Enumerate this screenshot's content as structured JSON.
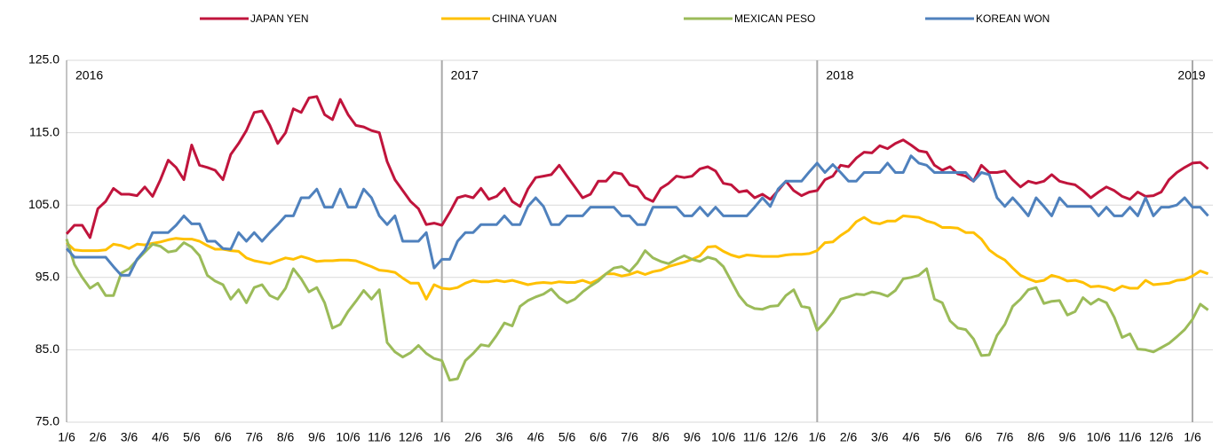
{
  "chart_data": {
    "type": "line",
    "ylim": [
      75,
      125
    ],
    "yticks": [
      {
        "value": 75,
        "label": "75.0"
      },
      {
        "value": 85,
        "label": "85.0"
      },
      {
        "value": 95,
        "label": "95.0"
      },
      {
        "value": 105,
        "label": "105.0"
      },
      {
        "value": 115,
        "label": "115.0"
      },
      {
        "value": 125,
        "label": "125.0"
      }
    ],
    "grid": true,
    "legend": "top",
    "annotations": [
      "2016",
      "2017",
      "2018",
      "2019"
    ],
    "categories": [
      "1/6",
      null,
      null,
      null,
      "2/6",
      null,
      null,
      null,
      "3/6",
      null,
      null,
      null,
      "4/6",
      null,
      null,
      null,
      "5/6",
      null,
      null,
      null,
      "6/6",
      null,
      null,
      null,
      "7/6",
      null,
      null,
      null,
      "8/6",
      null,
      null,
      null,
      "9/6",
      null,
      null,
      null,
      "10/6",
      null,
      null,
      null,
      "11/6",
      null,
      null,
      null,
      "12/6",
      null,
      null,
      null,
      "1/6",
      null,
      null,
      null,
      "2/6",
      null,
      null,
      null,
      "3/6",
      null,
      null,
      null,
      "4/6",
      null,
      null,
      null,
      "5/6",
      null,
      null,
      null,
      "6/6",
      null,
      null,
      null,
      "7/6",
      null,
      null,
      null,
      "8/6",
      null,
      null,
      null,
      "9/6",
      null,
      null,
      null,
      "10/6",
      null,
      null,
      null,
      "11/6",
      null,
      null,
      null,
      "12/6",
      null,
      null,
      null,
      "1/6",
      null,
      null,
      null,
      "2/6",
      null,
      null,
      null,
      "3/6",
      null,
      null,
      null,
      "4/6",
      null,
      null,
      null,
      "5/6",
      null,
      null,
      null,
      "6/6",
      null,
      null,
      null,
      "7/6",
      null,
      null,
      null,
      "8/6",
      null,
      null,
      null,
      "9/6",
      null,
      null,
      null,
      "10/6",
      null,
      null,
      null,
      "11/6",
      null,
      null,
      null,
      "12/6",
      null,
      null,
      null,
      "1/6",
      null,
      null
    ],
    "series": [
      {
        "name": "JAPAN YEN",
        "color": "#c0143c",
        "values": [
          101,
          102.2,
          102.2,
          100.5,
          104.5,
          105.5,
          107.3,
          106.5,
          106.5,
          106.3,
          107.5,
          106.2,
          108.5,
          111.2,
          110.2,
          108.5,
          113.3,
          110.5,
          110.2,
          109.8,
          108.5,
          112,
          113.5,
          115.3,
          117.8,
          118,
          116,
          113.5,
          115,
          118.3,
          117.8,
          119.8,
          120,
          117.5,
          116.8,
          119.6,
          117.5,
          116,
          115.8,
          115.3,
          115,
          111,
          108.5,
          107,
          105.5,
          104.5,
          102.3,
          102.5,
          102.2,
          104,
          106,
          106.3,
          106,
          107.3,
          105.8,
          106.2,
          107.3,
          105.5,
          104.8,
          107.2,
          108.8,
          109,
          109.2,
          110.5,
          109,
          107.5,
          106,
          106.5,
          108.3,
          108.3,
          109.5,
          109.3,
          107.8,
          107.5,
          106,
          105.5,
          107.3,
          108,
          109,
          108.8,
          109,
          110,
          110.3,
          109.7,
          108,
          107.8,
          106.8,
          107,
          106,
          106.5,
          105.8,
          107,
          108.3,
          107,
          106.3,
          106.8,
          107,
          108.5,
          109,
          110.5,
          110.3,
          111.5,
          112.3,
          112.2,
          113.2,
          112.8,
          113.5,
          114,
          113.3,
          112.5,
          112.3,
          110.5,
          109.8,
          110.3,
          109.3,
          109,
          108.3,
          110.5,
          109.5,
          109.5,
          109.7,
          108.5,
          107.5,
          108.3,
          108,
          108.3,
          109.2,
          108.3,
          108,
          107.8,
          107,
          106,
          106.8,
          107.5,
          107,
          106.2,
          105.8,
          106.8,
          106.2,
          106.3,
          106.8,
          108.5,
          109.5,
          110.2,
          110.8,
          110.9,
          110
        ]
      },
      {
        "name": "CHINA YUAN",
        "color": "#ffc000",
        "values": [
          99.8,
          98.8,
          98.7,
          98.7,
          98.7,
          98.8,
          99.6,
          99.4,
          99,
          99.6,
          99.5,
          99.7,
          99.9,
          100.2,
          100.4,
          100.3,
          100.3,
          100,
          99.4,
          98.9,
          98.9,
          98.7,
          98.6,
          97.7,
          97.3,
          97.1,
          96.9,
          97.3,
          97.7,
          97.5,
          97.9,
          97.6,
          97.2,
          97.3,
          97.3,
          97.4,
          97.4,
          97.3,
          96.9,
          96.5,
          96,
          95.9,
          95.7,
          94.9,
          94.2,
          94.2,
          92,
          94,
          93.5,
          93.4,
          93.6,
          94.2,
          94.6,
          94.4,
          94.4,
          94.6,
          94.4,
          94.6,
          94.3,
          94,
          94.2,
          94.3,
          94.2,
          94.4,
          94.3,
          94.3,
          94.6,
          94.2,
          94.7,
          95.5,
          95.5,
          95.2,
          95.4,
          95.8,
          95.4,
          95.8,
          96,
          96.5,
          96.8,
          97.1,
          97.5,
          98,
          99.2,
          99.3,
          98.6,
          98.1,
          97.8,
          98.1,
          98,
          97.9,
          97.9,
          97.9,
          98.1,
          98.2,
          98.2,
          98.3,
          98.7,
          99.8,
          99.9,
          100.8,
          101.5,
          102.7,
          103.3,
          102.6,
          102.4,
          102.8,
          102.8,
          103.5,
          103.4,
          103.3,
          102.8,
          102.5,
          101.9,
          101.9,
          101.8,
          101.2,
          101.2,
          100.3,
          98.8,
          98,
          97.4,
          96.3,
          95.3,
          94.8,
          94.4,
          94.6,
          95.3,
          95,
          94.5,
          94.6,
          94.3,
          93.7,
          93.8,
          93.6,
          93.2,
          93.8,
          93.5,
          93.5,
          94.6,
          94,
          94.1,
          94.2,
          94.6,
          94.7,
          95.2,
          95.9,
          95.5
        ]
      },
      {
        "name": "MEXICAN PESO",
        "color": "#9bbb59",
        "values": [
          100.3,
          96.8,
          95,
          93.5,
          94.2,
          92.5,
          92.5,
          95.6,
          96.2,
          97.4,
          98.5,
          99.6,
          99.3,
          98.5,
          98.7,
          99.8,
          99.2,
          98,
          95.3,
          94.5,
          94,
          92,
          93.3,
          91.5,
          93.6,
          94,
          92.5,
          92,
          93.5,
          96.2,
          94.8,
          93,
          93.6,
          91.5,
          88,
          88.5,
          90.3,
          91.7,
          93.2,
          92,
          93.3,
          86,
          84.7,
          84,
          84.6,
          85.6,
          84.5,
          83.8,
          83.5,
          80.8,
          81,
          83.5,
          84.5,
          85.7,
          85.5,
          87,
          88.7,
          88.3,
          91,
          91.8,
          92.3,
          92.7,
          93.4,
          92.2,
          91.5,
          92,
          93,
          93.8,
          94.5,
          95.5,
          96.3,
          96.5,
          95.8,
          97,
          98.7,
          97.7,
          97.2,
          96.9,
          97.5,
          98,
          97.5,
          97.2,
          97.8,
          97.5,
          96.5,
          94.5,
          92.5,
          91.2,
          90.7,
          90.6,
          91,
          91.1,
          92.5,
          93.3,
          91,
          90.8,
          87.7,
          88.8,
          90.2,
          92,
          92.3,
          92.7,
          92.6,
          93,
          92.8,
          92.4,
          93.2,
          94.8,
          95,
          95.3,
          96.2,
          92,
          91.5,
          89,
          88,
          87.8,
          86.5,
          84.2,
          84.3,
          87,
          88.5,
          91,
          92,
          93.3,
          93.6,
          91.4,
          91.7,
          91.8,
          89.8,
          90.3,
          92.2,
          91.3,
          92,
          91.5,
          89.5,
          86.7,
          87.2,
          85.1,
          85,
          84.7,
          85.3,
          85.9,
          86.8,
          87.8,
          89.2,
          91.3,
          90.5
        ]
      },
      {
        "name": "KOREAN WON",
        "color": "#4f81bd",
        "values": [
          99,
          97.8,
          97.8,
          97.8,
          97.8,
          97.8,
          96.5,
          95.3,
          95.3,
          97.5,
          98.8,
          101.2,
          101.2,
          101.2,
          102.2,
          103.5,
          102.4,
          102.4,
          100,
          100,
          99,
          98.9,
          101.2,
          100,
          101.2,
          100,
          101.2,
          102.3,
          103.5,
          103.5,
          106,
          106,
          107.2,
          104.7,
          104.7,
          107.2,
          104.7,
          104.7,
          107.2,
          106,
          103.5,
          102.3,
          103.5,
          100,
          100,
          100,
          101.2,
          96.3,
          97.5,
          97.5,
          100,
          101.2,
          101.2,
          102.3,
          102.3,
          102.3,
          103.5,
          102.3,
          102.3,
          104.8,
          106,
          104.8,
          102.3,
          102.3,
          103.5,
          103.5,
          103.5,
          104.7,
          104.7,
          104.7,
          104.7,
          103.5,
          103.5,
          102.3,
          102.3,
          104.7,
          104.7,
          104.7,
          104.7,
          103.5,
          103.5,
          104.7,
          103.5,
          104.7,
          103.5,
          103.5,
          103.5,
          103.5,
          104.7,
          106,
          104.8,
          107.2,
          108.3,
          108.3,
          108.3,
          109.6,
          110.8,
          109.5,
          110.6,
          109.5,
          108.3,
          108.3,
          109.5,
          109.5,
          109.5,
          110.8,
          109.5,
          109.5,
          111.8,
          110.8,
          110.5,
          109.5,
          109.5,
          109.5,
          109.5,
          109.5,
          108.3,
          109.5,
          109.2,
          106,
          104.8,
          106,
          104.8,
          103.5,
          106,
          104.8,
          103.5,
          106,
          104.8,
          104.8,
          104.8,
          104.8,
          103.5,
          104.7,
          103.5,
          103.5,
          104.7,
          103.5,
          106,
          103.5,
          104.7,
          104.7,
          105,
          106,
          104.7,
          104.7,
          103.5
        ]
      }
    ]
  }
}
